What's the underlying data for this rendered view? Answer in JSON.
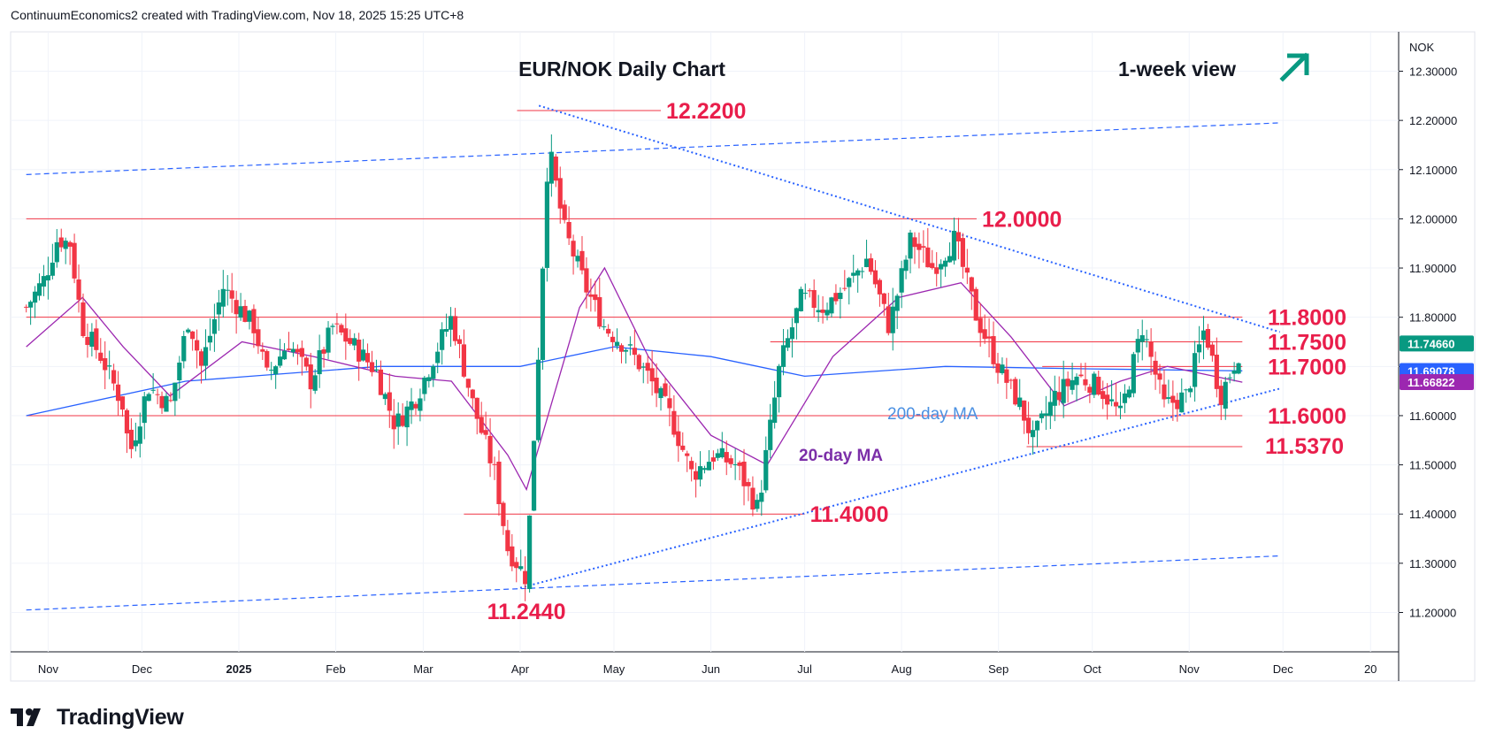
{
  "header": {
    "text": "ContinuumEconomics2 created with TradingView.com, Nov 18, 2025 15:25 UTC+8"
  },
  "footer": {
    "brand": "TradingView",
    "logo_icon": "tradingview-logo-icon"
  },
  "chart_data": {
    "type": "candlestick",
    "title": "EUR/NOK Daily Chart",
    "subtitle": "1-week view",
    "currency": "NOK",
    "view_arrow_icon": "arrow-up-right-icon",
    "ylim": [
      11.12,
      12.38
    ],
    "y_ticks": [
      "12.30000",
      "12.20000",
      "12.10000",
      "12.00000",
      "11.90000",
      "11.80000",
      "11.70000",
      "11.60000",
      "11.50000",
      "11.40000",
      "11.30000",
      "11.20000"
    ],
    "x_ticks": [
      "Nov",
      "Dec",
      "2025",
      "Feb",
      "Mar",
      "Apr",
      "May",
      "Jun",
      "Jul",
      "Aug",
      "Sep",
      "Oct",
      "Nov",
      "Dec",
      "20"
    ],
    "levels": [
      {
        "label": "12.2200",
        "value": 12.22,
        "from": "2025-03-31",
        "to": "2025-05-16"
      },
      {
        "label": "12.0000",
        "value": 12.0,
        "from": "2024-10-25",
        "to": "2025-08-25"
      },
      {
        "label": "11.8000",
        "value": 11.8,
        "from": "2024-10-25",
        "to": "2025-11-18"
      },
      {
        "label": "11.7500",
        "value": 11.75,
        "from": "2025-06-20",
        "to": "2025-11-18"
      },
      {
        "label": "11.7000",
        "value": 11.7,
        "from": "2025-09-15",
        "to": "2025-11-18"
      },
      {
        "label": "11.6000",
        "value": 11.6,
        "from": "2024-10-25",
        "to": "2025-11-18"
      },
      {
        "label": "11.5370",
        "value": 11.537,
        "from": "2025-09-10",
        "to": "2025-11-18"
      },
      {
        "label": "11.4000",
        "value": 11.4,
        "from": "2025-03-14",
        "to": "2025-07-01"
      },
      {
        "label": "11.2440",
        "value": 11.244,
        "from": "2025-04-03",
        "to": "2025-04-03"
      }
    ],
    "ma_labels": {
      "ma200": "200-day MA",
      "ma20": "20-day MA"
    },
    "price_tags": [
      {
        "value": "11.74660",
        "color": "#089981",
        "y": 11.7466
      },
      {
        "value": "11.69078",
        "color": "#2962ff",
        "y": 11.69078
      },
      {
        "value": "11.66822",
        "color": "#9c27b0",
        "y": 11.66822
      }
    ],
    "trendlines": [
      {
        "name": "upper-channel",
        "points": [
          [
            "2024-10-25",
            12.09
          ],
          [
            "2025-11-30",
            12.195
          ]
        ],
        "style": "dashed"
      },
      {
        "name": "lower-channel",
        "points": [
          [
            "2024-10-25",
            11.205
          ],
          [
            "2025-11-30",
            11.315
          ]
        ],
        "style": "dashed"
      },
      {
        "name": "falling-resistance",
        "points": [
          [
            "2025-04-07",
            12.23
          ],
          [
            "2025-11-30",
            11.77
          ]
        ],
        "style": "dotted"
      },
      {
        "name": "rising-support",
        "points": [
          [
            "2025-04-01",
            11.25
          ],
          [
            "2025-11-30",
            11.655
          ]
        ],
        "style": "dotted"
      }
    ],
    "colors": {
      "up": "#089981",
      "down": "#f23645",
      "level": "#f23645",
      "ma200": "#2962ff",
      "ma20": "#9c27b0",
      "label": "#e91e4b",
      "trend": "#2962ff"
    },
    "anchors": [
      [
        "2024-10-25",
        11.82
      ],
      [
        "2024-10-31",
        11.88
      ],
      [
        "2024-11-04",
        11.96
      ],
      [
        "2024-11-08",
        11.95
      ],
      [
        "2024-11-12",
        11.78
      ],
      [
        "2024-11-18",
        11.72
      ],
      [
        "2024-11-25",
        11.62
      ],
      [
        "2024-11-27",
        11.52
      ],
      [
        "2024-12-03",
        11.66
      ],
      [
        "2024-12-10",
        11.62
      ],
      [
        "2024-12-16",
        11.8
      ],
      [
        "2024-12-20",
        11.7
      ],
      [
        "2024-12-27",
        11.86
      ],
      [
        "2025-01-06",
        11.78
      ],
      [
        "2025-01-10",
        11.68
      ],
      [
        "2025-01-17",
        11.75
      ],
      [
        "2025-01-24",
        11.67
      ],
      [
        "2025-01-31",
        11.78
      ],
      [
        "2025-02-07",
        11.74
      ],
      [
        "2025-02-14",
        11.69
      ],
      [
        "2025-02-20",
        11.58
      ],
      [
        "2025-02-27",
        11.64
      ],
      [
        "2025-03-05",
        11.73
      ],
      [
        "2025-03-10",
        11.8
      ],
      [
        "2025-03-17",
        11.62
      ],
      [
        "2025-03-24",
        11.48
      ],
      [
        "2025-03-28",
        11.33
      ],
      [
        "2025-04-03",
        11.27
      ],
      [
        "2025-04-07",
        11.75
      ],
      [
        "2025-04-10",
        12.15
      ],
      [
        "2025-04-15",
        11.98
      ],
      [
        "2025-04-22",
        11.86
      ],
      [
        "2025-04-28",
        11.78
      ],
      [
        "2025-05-05",
        11.74
      ],
      [
        "2025-05-12",
        11.68
      ],
      [
        "2025-05-19",
        11.6
      ],
      [
        "2025-05-26",
        11.48
      ],
      [
        "2025-06-02",
        11.52
      ],
      [
        "2025-06-09",
        11.5
      ],
      [
        "2025-06-16",
        11.41
      ],
      [
        "2025-06-23",
        11.7
      ],
      [
        "2025-06-30",
        11.84
      ],
      [
        "2025-07-07",
        11.82
      ],
      [
        "2025-07-14",
        11.86
      ],
      [
        "2025-07-21",
        11.92
      ],
      [
        "2025-07-28",
        11.78
      ],
      [
        "2025-08-04",
        11.96
      ],
      [
        "2025-08-11",
        11.9
      ],
      [
        "2025-08-18",
        11.96
      ],
      [
        "2025-08-25",
        11.8
      ],
      [
        "2025-09-01",
        11.7
      ],
      [
        "2025-09-08",
        11.62
      ],
      [
        "2025-09-12",
        11.55
      ],
      [
        "2025-09-19",
        11.64
      ],
      [
        "2025-09-26",
        11.68
      ],
      [
        "2025-10-03",
        11.66
      ],
      [
        "2025-10-10",
        11.6
      ],
      [
        "2025-10-17",
        11.78
      ],
      [
        "2025-10-24",
        11.62
      ],
      [
        "2025-10-31",
        11.64
      ],
      [
        "2025-11-06",
        11.78
      ],
      [
        "2025-11-11",
        11.64
      ],
      [
        "2025-11-18",
        11.747
      ]
    ],
    "ma200_points": [
      [
        "2024-10-25",
        11.6
      ],
      [
        "2024-12-15",
        11.67
      ],
      [
        "2025-02-15",
        11.7
      ],
      [
        "2025-04-01",
        11.7
      ],
      [
        "2025-05-01",
        11.74
      ],
      [
        "2025-06-01",
        11.72
      ],
      [
        "2025-07-01",
        11.68
      ],
      [
        "2025-08-15",
        11.7
      ],
      [
        "2025-10-01",
        11.695
      ],
      [
        "2025-11-18",
        11.691
      ]
    ],
    "ma20_points": [
      [
        "2024-10-25",
        11.74
      ],
      [
        "2024-11-12",
        11.84
      ],
      [
        "2024-11-25",
        11.74
      ],
      [
        "2024-12-10",
        11.64
      ],
      [
        "2025-01-02",
        11.75
      ],
      [
        "2025-01-25",
        11.72
      ],
      [
        "2025-02-20",
        11.68
      ],
      [
        "2025-03-10",
        11.67
      ],
      [
        "2025-03-28",
        11.52
      ],
      [
        "2025-04-03",
        11.45
      ],
      [
        "2025-04-20",
        11.82
      ],
      [
        "2025-04-28",
        11.9
      ],
      [
        "2025-05-12",
        11.72
      ],
      [
        "2025-06-01",
        11.56
      ],
      [
        "2025-06-19",
        11.5
      ],
      [
        "2025-07-10",
        11.72
      ],
      [
        "2025-07-31",
        11.84
      ],
      [
        "2025-08-20",
        11.87
      ],
      [
        "2025-09-05",
        11.76
      ],
      [
        "2025-09-22",
        11.62
      ],
      [
        "2025-10-10",
        11.67
      ],
      [
        "2025-10-25",
        11.7
      ],
      [
        "2025-11-18",
        11.668
      ]
    ]
  }
}
